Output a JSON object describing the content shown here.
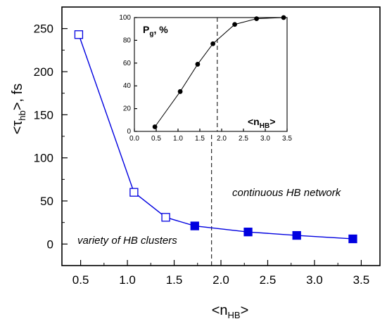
{
  "chart_data": [
    {
      "type": "line",
      "xlabel": "<nHB>",
      "ylabel": "<τhb>, fs",
      "xlim": [
        0.3,
        3.7
      ],
      "ylim": [
        -25,
        275
      ],
      "x_ticks": [
        "0.5",
        "1.0",
        "1.5",
        "2.0",
        "2.5",
        "3.0",
        "3.5"
      ],
      "y_ticks": [
        "0",
        "50",
        "100",
        "150",
        "200",
        "250"
      ],
      "vline_x": 1.9,
      "series": [
        {
          "marker": "open-square",
          "color": "#0000e0",
          "x": [
            0.48,
            1.07,
            1.41
          ],
          "y": [
            243,
            60,
            31
          ]
        },
        {
          "marker": "filled-square",
          "color": "#0000e0",
          "x": [
            1.72,
            2.29,
            2.81,
            3.41
          ],
          "y": [
            21,
            14,
            10,
            6
          ]
        }
      ],
      "annotations": [
        "continuous HB network",
        "variety of HB clusters"
      ]
    },
    {
      "type": "line",
      "title": "Pg, %",
      "xlabel": "<nHB>",
      "xlim": [
        0.0,
        3.5
      ],
      "ylim": [
        0,
        100
      ],
      "x_ticks": [
        "0.0",
        "0.5",
        "1.0",
        "1.5",
        "2.0",
        "2.5",
        "3.0",
        "3.5"
      ],
      "y_ticks": [
        "0",
        "20",
        "40",
        "60",
        "80",
        "100"
      ],
      "vline_x": 1.9,
      "series": [
        {
          "marker": "filled-circle",
          "color": "#000000",
          "x": [
            0.47,
            1.05,
            1.45,
            1.8,
            2.3,
            2.8,
            3.42
          ],
          "y": [
            4,
            35,
            59,
            77,
            94,
            99,
            100
          ]
        }
      ]
    }
  ]
}
